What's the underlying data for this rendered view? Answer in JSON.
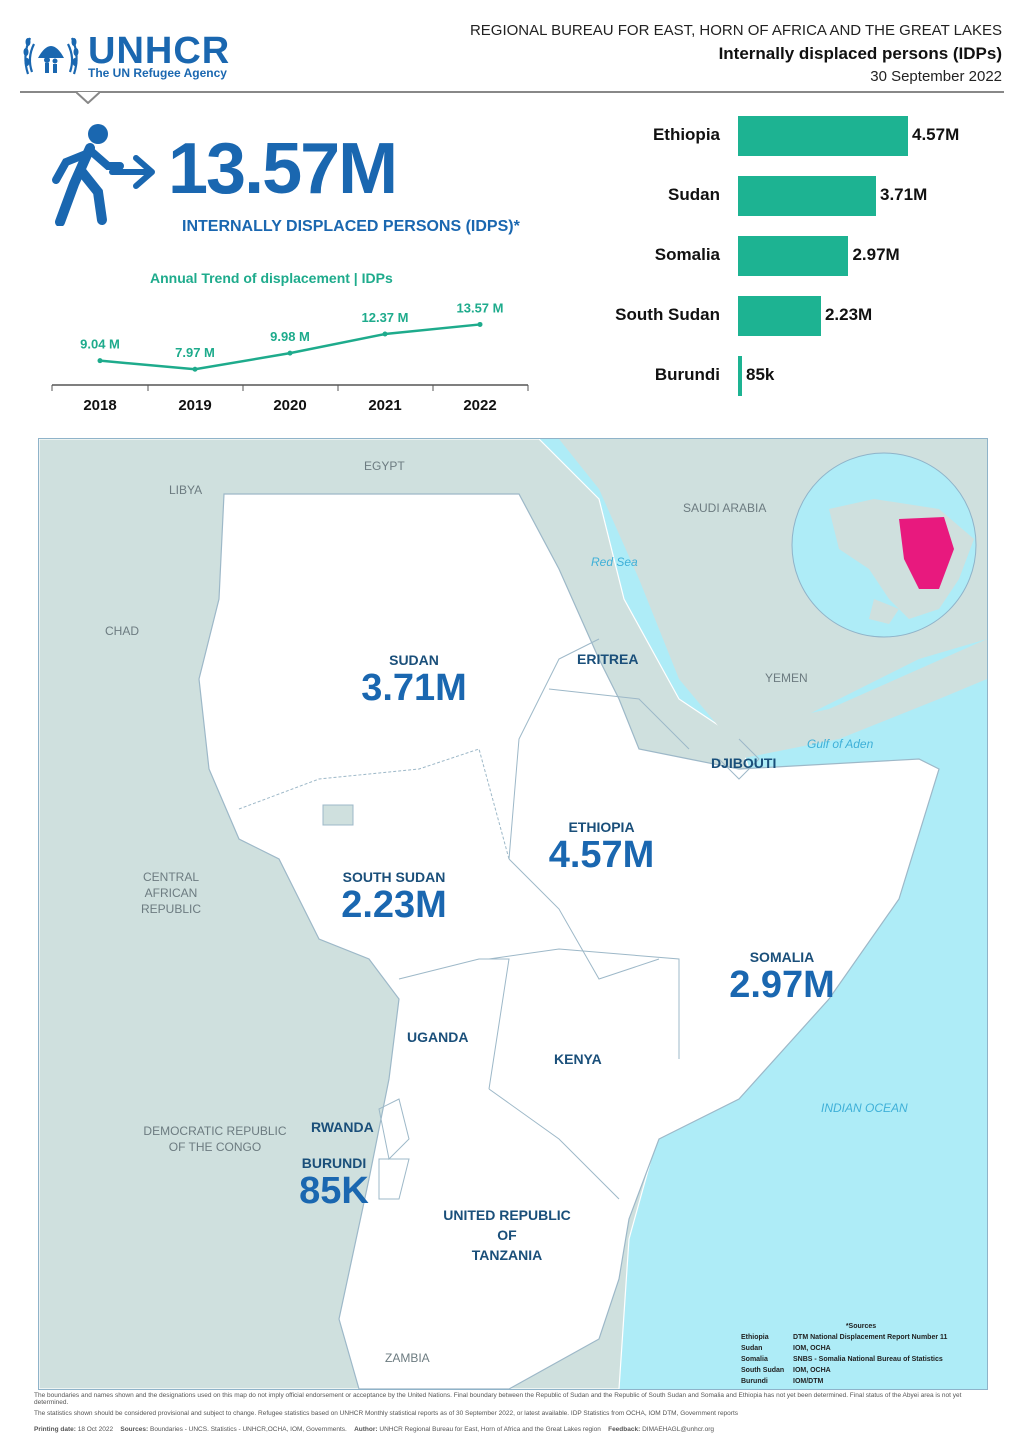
{
  "logo": {
    "name": "UNHCR",
    "tagline": "The UN Refugee Agency"
  },
  "header": {
    "bureau": "REGIONAL BUREAU FOR EAST, HORN OF AFRICA AND THE GREAT LAKES",
    "title": "Internally displaced persons (IDPs)",
    "date": "30 September 2022"
  },
  "headline": {
    "total": "13.57M",
    "label": "INTERNALLY DISPLACED PERSONS (IDPS)*"
  },
  "trend": {
    "title": "Annual Trend of displacement | IDPs",
    "years": [
      "2018",
      "2019",
      "2020",
      "2021",
      "2022"
    ],
    "labels": [
      "9.04 M",
      "7.97 M",
      "9.98 M",
      "12.37 M",
      "13.57 M"
    ],
    "values": [
      9.04,
      7.97,
      9.98,
      12.37,
      13.57
    ]
  },
  "chart_data": [
    {
      "type": "line",
      "title": "Annual Trend of displacement | IDPs",
      "x": [
        "2018",
        "2019",
        "2020",
        "2021",
        "2022"
      ],
      "y": [
        9.04,
        7.97,
        9.98,
        12.37,
        13.57
      ],
      "unit": "M"
    },
    {
      "type": "bar",
      "orientation": "horizontal",
      "categories": [
        "Ethiopia",
        "Sudan",
        "Somalia",
        "South Sudan",
        "Burundi"
      ],
      "values": [
        4570000,
        3710000,
        2970000,
        2230000,
        85000
      ],
      "labels": [
        "4.57M",
        "3.71M",
        "2.97M",
        "2.23M",
        "85k"
      ]
    }
  ],
  "bars": [
    {
      "country": "Ethiopia",
      "label": "4.57M",
      "value": 4.57
    },
    {
      "country": "Sudan",
      "label": "3.71M",
      "value": 3.71
    },
    {
      "country": "Somalia",
      "label": "2.97M",
      "value": 2.97
    },
    {
      "country": "South Sudan",
      "label": "2.23M",
      "value": 2.23
    },
    {
      "country": "Burundi",
      "label": "85k",
      "value": 0.085
    }
  ],
  "map": {
    "countries": {
      "sudan": {
        "name": "SUDAN",
        "value": "3.71M"
      },
      "eritrea": {
        "name": "ERITREA"
      },
      "ethiopia": {
        "name": "ETHIOPIA",
        "value": "4.57M"
      },
      "djibouti": {
        "name": "DJIBOUTI"
      },
      "south_sudan": {
        "name": "SOUTH SUDAN",
        "value": "2.23M"
      },
      "somalia": {
        "name": "SOMALIA",
        "value": "2.97M"
      },
      "uganda": {
        "name": "UGANDA"
      },
      "kenya": {
        "name": "KENYA"
      },
      "rwanda": {
        "name": "RWANDA"
      },
      "burundi": {
        "name": "BURUNDI",
        "value": "85K"
      },
      "tanzania": {
        "l1": "UNITED REPUBLIC",
        "l2": "OF",
        "l3": "TANZANIA"
      }
    },
    "others": {
      "egypt": "EGYPT",
      "libya": "LIBYA",
      "chad": "CHAD",
      "car1": "CENTRAL",
      "car2": "AFRICAN",
      "car3": "REPUBLIC",
      "drc1": "DEMOCRATIC REPUBLIC",
      "drc2": "OF THE CONGO",
      "zambia": "ZAMBIA",
      "saudi": "SAUDI ARABIA",
      "yemen": "YEMEN"
    },
    "water": {
      "red_sea": "Red Sea",
      "gulf": "Gulf of Aden",
      "indian": "INDIAN OCEAN"
    },
    "sources": {
      "title": "*Sources",
      "rows": [
        [
          "Ethiopia",
          "DTM National Displacement Report Number 11"
        ],
        [
          "Sudan",
          "IOM, OCHA"
        ],
        [
          "Somalia",
          "SNBS - Somalia National Bureau of Statistics"
        ],
        [
          "South Sudan",
          "IOM, OCHA"
        ],
        [
          "Burundi",
          "IOM/DTM"
        ]
      ]
    }
  },
  "footer": {
    "line1": "The boundaries and names shown and the designations used on this map do not imply official endorsement or acceptance by the United Nations. Final boundary between the Republic of Sudan and the Republic of South Sudan and Somalia and Ethiopia has not yet been determined. Final status of the Abyei area is not yet determined.",
    "line2": "The statistics shown should be considered provisional and subject to change. Refugee statistics based on UNHCR Monthly statistical reports as of 30 September 2022, or latest available. IDP Statistics from OCHA, IOM DTM, Government reports",
    "printing_label": "Printing date:",
    "printing": "18 Oct 2022",
    "sources_label": "Sources:",
    "sources": "Boundaries - UNCS. Statistics - UNHCR,OCHA, IOM, Governments.",
    "author_label": "Author:",
    "author": "UNHCR Regional Bureau for East, Horn of Africa and the Great Lakes region",
    "feedback_label": "Feedback:",
    "feedback": "DIMAEHAGL@unhcr.org"
  },
  "colors": {
    "brand": "#1a67b0",
    "teal": "#1db392",
    "water": "#aeecf7",
    "land": "#cfe0de",
    "highlight": "#e8197e"
  }
}
